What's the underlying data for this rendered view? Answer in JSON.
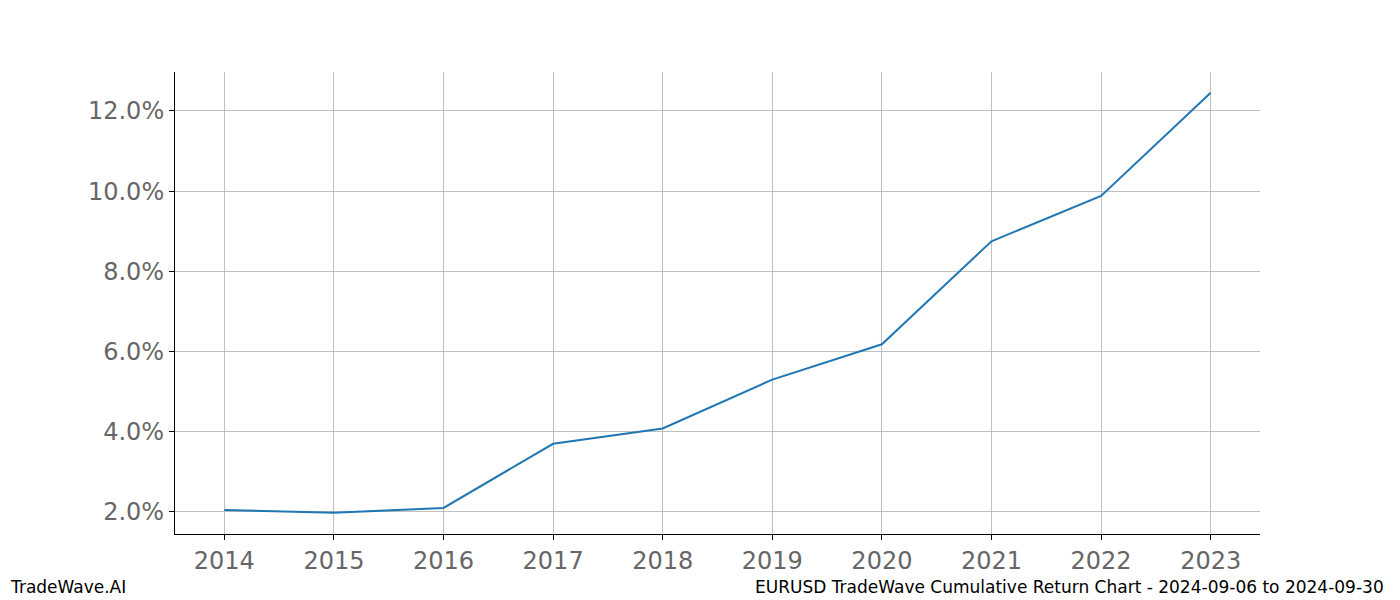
{
  "chart_data": {
    "type": "line",
    "x": [
      2014,
      2015,
      2016,
      2017,
      2018,
      2019,
      2020,
      2021,
      2022,
      2023
    ],
    "values": [
      2.05,
      1.98,
      2.1,
      3.7,
      4.08,
      5.3,
      6.18,
      8.75,
      9.88,
      12.45
    ],
    "color": "#1f77b4",
    "xlim": [
      2013.55,
      2023.45
    ],
    "xticks": [
      2014,
      2015,
      2016,
      2017,
      2018,
      2019,
      2020,
      2021,
      2022,
      2023
    ],
    "ylim": [
      1.45,
      12.97
    ],
    "yticks": [
      {
        "value": 2,
        "label": "2.0%"
      },
      {
        "value": 4,
        "label": "4.0%"
      },
      {
        "value": 6,
        "label": "6.0%"
      },
      {
        "value": 8,
        "label": "8.0%"
      },
      {
        "value": 10,
        "label": "10.0%"
      },
      {
        "value": 12,
        "label": "12.0%"
      }
    ],
    "grid": true,
    "annotations": [
      "TradeWave.AI",
      "EURUSD TradeWave Cumulative Return Chart - 2024-09-06 to 2024-09-30"
    ]
  }
}
